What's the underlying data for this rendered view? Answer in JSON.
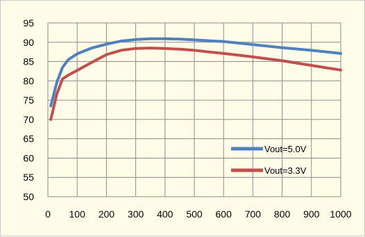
{
  "chart_data": {
    "type": "line",
    "title": "",
    "xlabel": "",
    "ylabel": "",
    "xlim": [
      0,
      1000
    ],
    "ylim": [
      50,
      95
    ],
    "xticks": [
      "0",
      "100",
      "200",
      "300",
      "400",
      "500",
      "600",
      "700",
      "800",
      "900",
      "1000"
    ],
    "yticks": [
      "50",
      "55",
      "60",
      "65",
      "70",
      "75",
      "80",
      "85",
      "90",
      "95"
    ],
    "grid": true,
    "legend_position": "bottom-right",
    "series": [
      {
        "name": "Vout=5.0V",
        "color": "#4f81bd",
        "x": [
          10,
          30,
          50,
          70,
          100,
          150,
          200,
          250,
          300,
          350,
          400,
          450,
          500,
          550,
          600,
          700,
          800,
          900,
          1000
        ],
        "y": [
          73.5,
          79.5,
          83.5,
          85.5,
          87.0,
          88.5,
          89.5,
          90.3,
          90.7,
          90.9,
          90.9,
          90.8,
          90.6,
          90.4,
          90.2,
          89.4,
          88.6,
          87.9,
          87.1
        ]
      },
      {
        "name": "Vout=3.3V",
        "color": "#c0504d",
        "x": [
          10,
          30,
          50,
          70,
          100,
          150,
          200,
          250,
          300,
          350,
          400,
          450,
          500,
          550,
          600,
          700,
          800,
          900,
          1000
        ],
        "y": [
          70.0,
          76.5,
          80.5,
          81.5,
          82.7,
          84.8,
          86.8,
          87.9,
          88.4,
          88.5,
          88.4,
          88.2,
          87.9,
          87.5,
          87.1,
          86.2,
          85.2,
          84.0,
          82.8
        ]
      }
    ]
  }
}
